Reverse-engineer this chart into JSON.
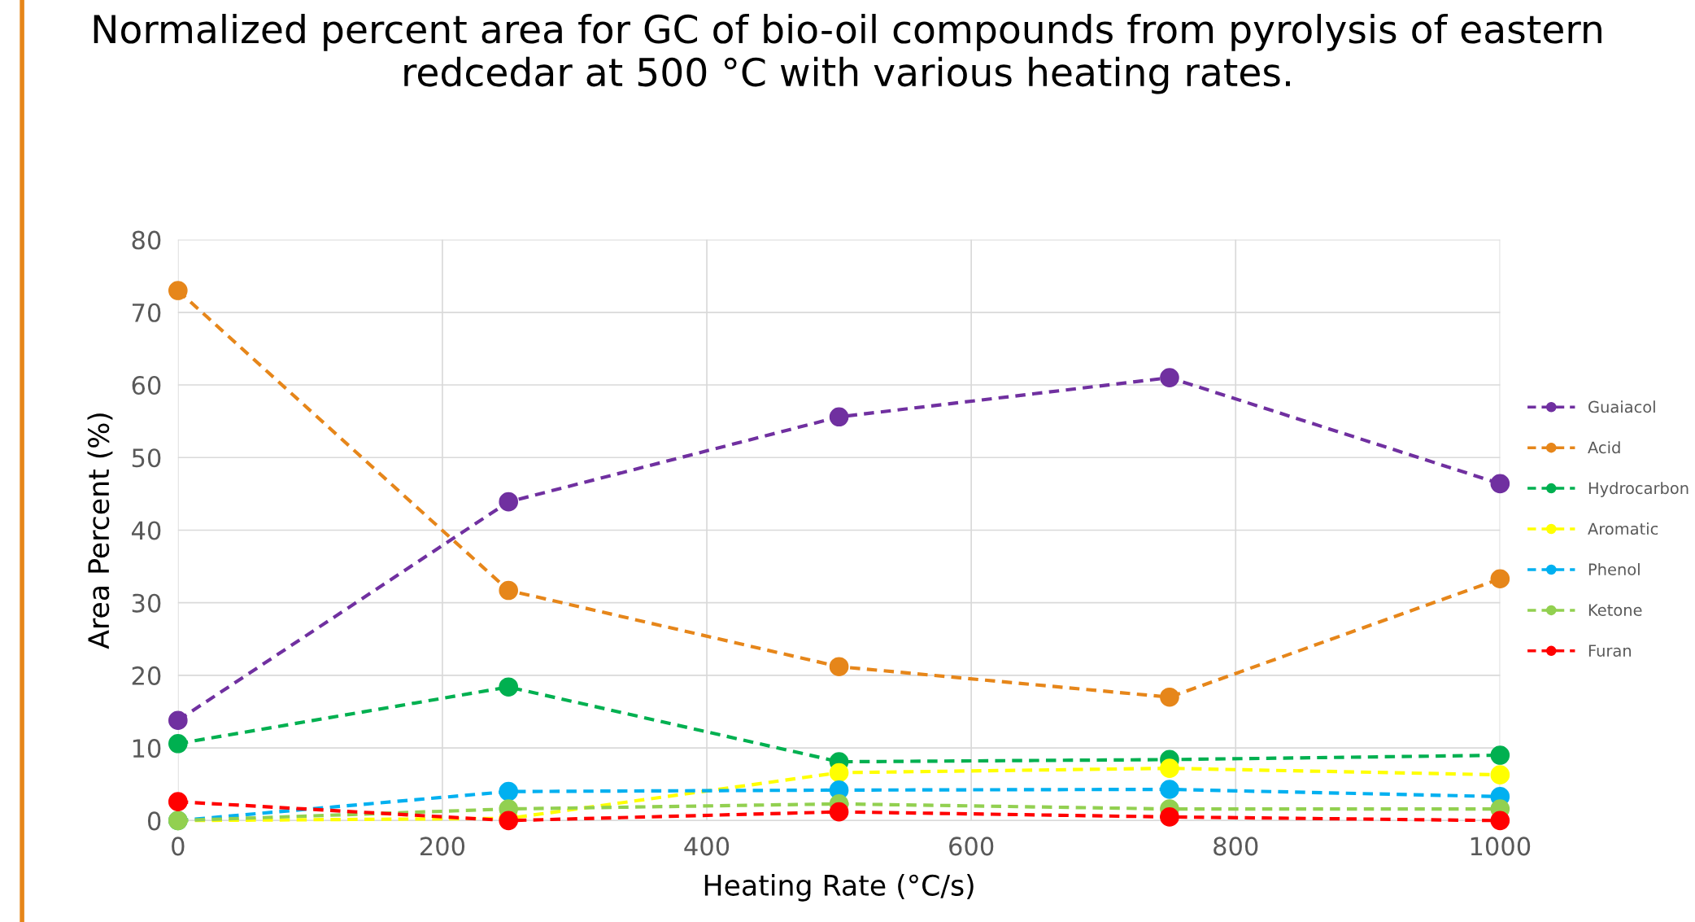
{
  "chart_data": {
    "type": "line",
    "title": "Normalized percent area for GC of bio-oil compounds from pyrolysis of eastern redcedar at 500 °C with various heating rates.",
    "xlabel": "Heating Rate (°C/s)",
    "ylabel": "Area Percent (%)",
    "x": [
      0,
      250,
      500,
      750,
      1000
    ],
    "xlim": [
      0,
      1000
    ],
    "xticks": [
      0,
      200,
      400,
      600,
      800,
      1000
    ],
    "ylim": [
      0,
      80
    ],
    "yticks": [
      0,
      10,
      20,
      30,
      40,
      50,
      60,
      70,
      80
    ],
    "grid": true,
    "legend": "right",
    "marker": "circle",
    "line_style": "dashed",
    "series": [
      {
        "name": "Guaiacol",
        "color": "#7030a0",
        "values": [
          13.8,
          43.9,
          55.6,
          61.0,
          46.4
        ]
      },
      {
        "name": "Acid",
        "color": "#e6861a",
        "values": [
          73.0,
          31.7,
          21.2,
          17.0,
          33.3
        ]
      },
      {
        "name": "Hydrocarbon",
        "color": "#00b050",
        "values": [
          10.6,
          18.4,
          8.1,
          8.4,
          9.0
        ]
      },
      {
        "name": "Aromatic",
        "color": "#ffff00",
        "values": [
          0.0,
          0.3,
          6.6,
          7.2,
          6.3
        ]
      },
      {
        "name": "Phenol",
        "color": "#00b0f0",
        "values": [
          0.0,
          4.0,
          4.2,
          4.3,
          3.3
        ]
      },
      {
        "name": "Ketone",
        "color": "#92d050",
        "values": [
          0.0,
          1.6,
          2.3,
          1.6,
          1.6
        ]
      },
      {
        "name": "Furan",
        "color": "#ff0000",
        "values": [
          2.6,
          0.0,
          1.2,
          0.5,
          0.0
        ]
      }
    ]
  }
}
